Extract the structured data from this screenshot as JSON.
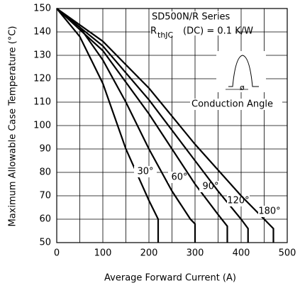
{
  "chart_data": {
    "type": "line",
    "xlabel": "Average Forward Current (A)",
    "ylabel": "Maximum Allowable Case Temperature (°C)",
    "annotations": {
      "series_title": "SD500N/R Series",
      "rth_r": "R",
      "rth_sub": "thJC",
      "rth_rest": "(DC) = 0.1 K/W",
      "phi": "ø",
      "conduction": "Conduction Angle"
    },
    "xlim": [
      0,
      500
    ],
    "ylim": [
      50,
      150
    ],
    "xticks": [
      0,
      100,
      200,
      300,
      400,
      500
    ],
    "yticks": [
      50,
      60,
      70,
      80,
      90,
      100,
      110,
      120,
      130,
      140,
      150
    ],
    "xgrid": [
      0,
      50,
      100,
      150,
      200,
      250,
      300,
      350,
      400,
      450,
      500
    ],
    "grid": true,
    "series": [
      {
        "name": "30°",
        "color": "#000000",
        "x": [
          0,
          50,
          100,
          150,
          200,
          215,
          220,
          220
        ],
        "values": [
          150,
          138,
          118,
          90,
          68,
          62,
          60,
          50
        ]
      },
      {
        "name": "60°",
        "color": "#000000",
        "x": [
          0,
          50,
          100,
          150,
          200,
          250,
          290,
          300,
          300
        ],
        "values": [
          150,
          142,
          128,
          110,
          90,
          72,
          60,
          58,
          50
        ]
      },
      {
        "name": "90°",
        "color": "#000000",
        "x": [
          0,
          100,
          200,
          250,
          300,
          350,
          370,
          370
        ],
        "values": [
          150,
          132,
          105,
          90,
          75,
          62,
          57,
          50
        ]
      },
      {
        "name": "120°",
        "color": "#000000",
        "x": [
          0,
          100,
          200,
          300,
          350,
          400,
          415,
          415
        ],
        "values": [
          150,
          134,
          111,
          85,
          72,
          60,
          56,
          50
        ]
      },
      {
        "name": "180°",
        "color": "#000000",
        "x": [
          0,
          100,
          200,
          300,
          400,
          450,
          470,
          470
        ],
        "values": [
          150,
          136,
          116,
          92,
          70,
          60,
          56,
          50
        ]
      }
    ]
  }
}
